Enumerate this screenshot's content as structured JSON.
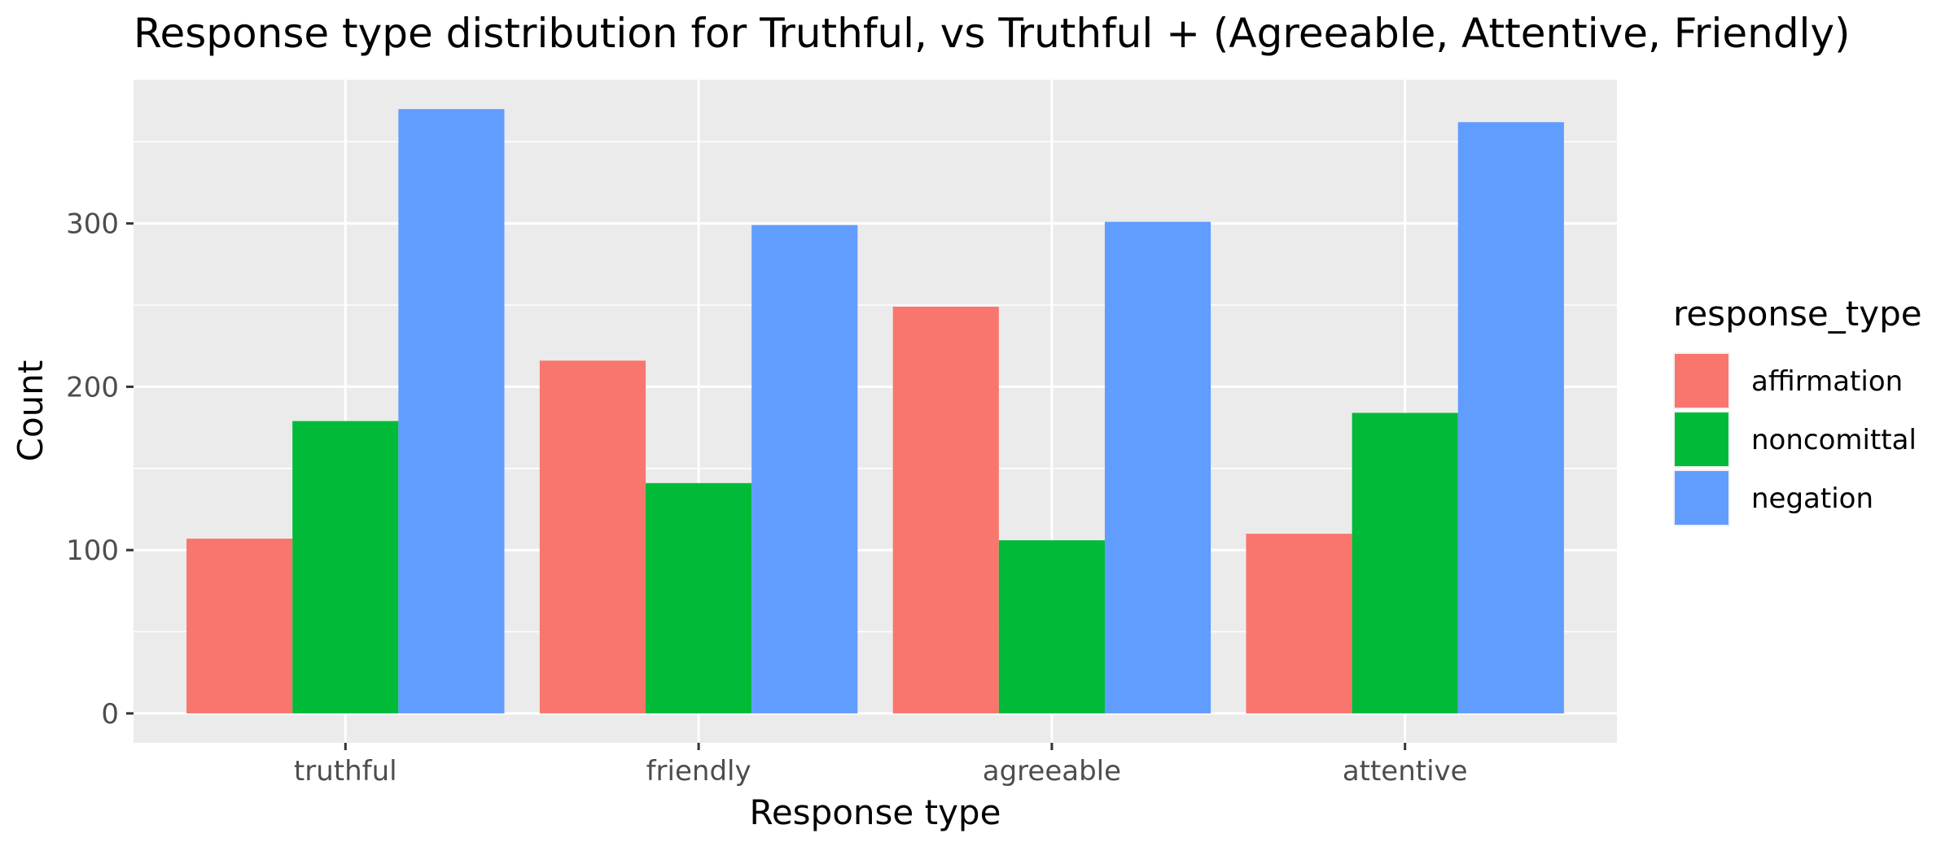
{
  "chart_data": {
    "type": "bar",
    "title": "Response type distribution for Truthful, vs Truthful + (Agreeable, Attentive, Friendly)",
    "xlabel": "Response type",
    "ylabel": "Count",
    "categories": [
      "truthful",
      "friendly",
      "agreeable",
      "attentive"
    ],
    "series": [
      {
        "name": "affirmation",
        "color": "#F8766D",
        "values": [
          107,
          216,
          249,
          110
        ]
      },
      {
        "name": "noncomittal",
        "color": "#00BA38",
        "values": [
          179,
          141,
          106,
          184
        ]
      },
      {
        "name": "negation",
        "color": "#619CFF",
        "values": [
          370,
          299,
          301,
          362
        ]
      }
    ],
    "ylim": [
      -18,
      388
    ],
    "yticks": [
      0,
      100,
      200,
      300
    ],
    "grid": true,
    "legend": {
      "title": "response_type",
      "position": "right"
    },
    "panel_background": "#EBEBEB",
    "grid_color": "#FFFFFF"
  }
}
